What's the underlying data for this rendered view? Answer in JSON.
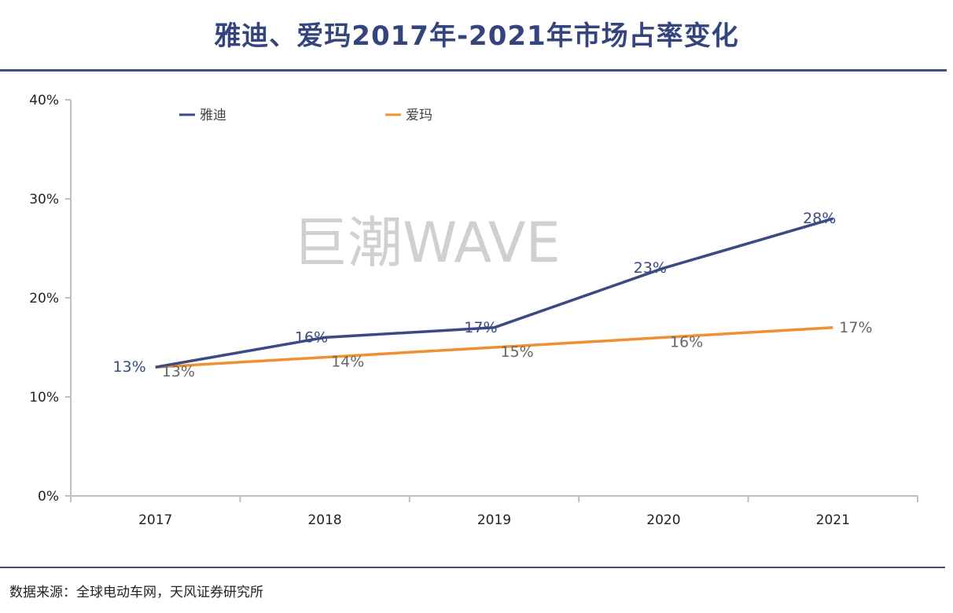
{
  "title": "雅迪、爱玛2017年-2021年市场占率变化",
  "source_note": "数据来源：全球电动车网，天风证券研究所",
  "watermark": "巨潮WAVE",
  "colors": {
    "yadea": "#3a4a82",
    "aima": "#ef9130",
    "axis": "#bfbfbf",
    "title": "#34457e"
  },
  "chart_data": {
    "type": "line",
    "title": "雅迪、爱玛2017年-2021年市场占率变化",
    "xlabel": "",
    "ylabel": "",
    "categories": [
      "2017",
      "2018",
      "2019",
      "2020",
      "2021"
    ],
    "series": [
      {
        "name": "雅迪",
        "values": [
          13,
          16,
          17,
          23,
          28
        ],
        "labels": [
          "13%",
          "16%",
          "17%",
          "23%",
          "28%"
        ]
      },
      {
        "name": "爱玛",
        "values": [
          13,
          14,
          15,
          16,
          17
        ],
        "labels": [
          "13%",
          "14%",
          "15%",
          "16%",
          "17%"
        ]
      }
    ],
    "ylim": [
      0,
      40
    ],
    "yticks": [
      0,
      10,
      20,
      30,
      40
    ],
    "ytick_labels": [
      "0%",
      "10%",
      "20%",
      "30%",
      "40%"
    ],
    "grid": false,
    "legend_position": "top"
  }
}
